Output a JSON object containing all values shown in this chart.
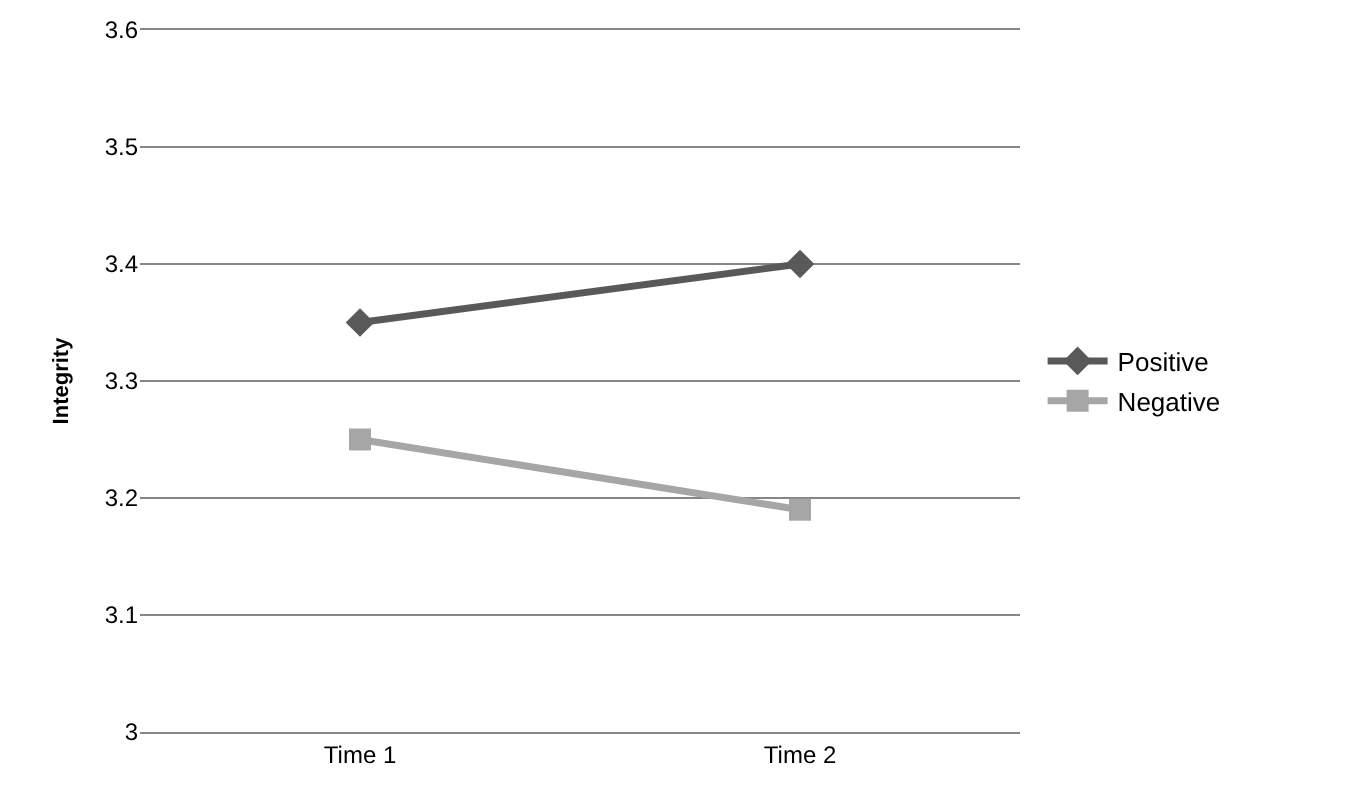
{
  "chart_data": {
    "type": "line",
    "ylabel": "Integrity",
    "categories": [
      "Time 1",
      "Time 2"
    ],
    "series": [
      {
        "name": "Positive",
        "color": "#595959",
        "marker": "diamond",
        "values": [
          3.35,
          3.4
        ]
      },
      {
        "name": "Negative",
        "color": "#a6a6a6",
        "marker": "square",
        "values": [
          3.25,
          3.19
        ]
      }
    ],
    "ylim": [
      3,
      3.6
    ],
    "yticks": [
      3,
      3.1,
      3.2,
      3.3,
      3.4,
      3.5,
      3.6
    ],
    "grid": "y",
    "legend": "right",
    "line_style": "solid"
  }
}
